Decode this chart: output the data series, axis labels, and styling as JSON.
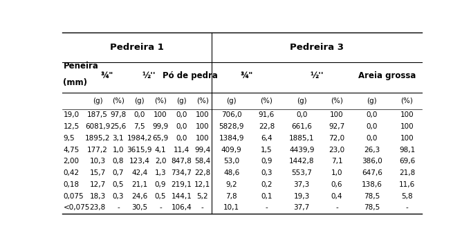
{
  "title_p1": "Pedreira 1",
  "title_p3": "Pedreira 3",
  "sub_labels_p1": [
    "¾\"",
    "½''",
    "Pó de pedra"
  ],
  "sub_labels_p3": [
    "¾\"",
    "½''",
    "Areia grossa"
  ],
  "unit_labels": [
    "(g)",
    "(%)",
    "(g)",
    "(%)",
    "(g)",
    "(%)",
    "(g)",
    "(%)",
    "(g)",
    "(%)",
    "(g)",
    "(%)"
  ],
  "peneira_label_line1": "Peneira",
  "peneira_label_line2": "(mm)",
  "rows": [
    [
      "19,0",
      "187,5",
      "97,8",
      "0,0",
      "100",
      "0,0",
      "100",
      "706,0",
      "91,6",
      "0,0",
      "100",
      "0,0",
      "100"
    ],
    [
      "12,5",
      "6081,9",
      "25,6",
      "7,5",
      "99,9",
      "0,0",
      "100",
      "5828,9",
      "22,8",
      "661,6",
      "92,7",
      "0,0",
      "100"
    ],
    [
      "9,5",
      "1895,2",
      "3,1",
      "1984,2",
      "65,9",
      "0,0",
      "100",
      "1384,9",
      "6,4",
      "1885,1",
      "72,0",
      "0,0",
      "100"
    ],
    [
      "4,75",
      "177,2",
      "1,0",
      "3615,9",
      "4,1",
      "11,4",
      "99,4",
      "409,9",
      "1,5",
      "4439,9",
      "23,0",
      "26,3",
      "98,1"
    ],
    [
      "2,00",
      "10,3",
      "0,8",
      "123,4",
      "2,0",
      "847,8",
      "58,4",
      "53,0",
      "0,9",
      "1442,8",
      "7,1",
      "386,0",
      "69,6"
    ],
    [
      "0,42",
      "15,7",
      "0,7",
      "42,4",
      "1,3",
      "734,7",
      "22,8",
      "48,6",
      "0,3",
      "553,7",
      "1,0",
      "647,6",
      "21,8"
    ],
    [
      "0,18",
      "12,7",
      "0,5",
      "21,1",
      "0,9",
      "219,1",
      "12,1",
      "9,2",
      "0,2",
      "37,3",
      "0,6",
      "138,6",
      "11,6"
    ],
    [
      "0,075",
      "18,3",
      "0,3",
      "24,6",
      "0,5",
      "144,1",
      "5,2",
      "7,8",
      "0,1",
      "19,3",
      "0,4",
      "78,5",
      "5,8"
    ],
    [
      "<0,075",
      "23,8",
      "-",
      "30,5",
      "-",
      "106,4",
      "-",
      "10,1",
      "-",
      "37,7",
      "-",
      "78,5",
      "-"
    ]
  ],
  "bg_color": "#ffffff",
  "line_color": "#000000",
  "fontsize": 7.5,
  "bold_fontsize": 8.5,
  "title_fontsize": 9.5
}
